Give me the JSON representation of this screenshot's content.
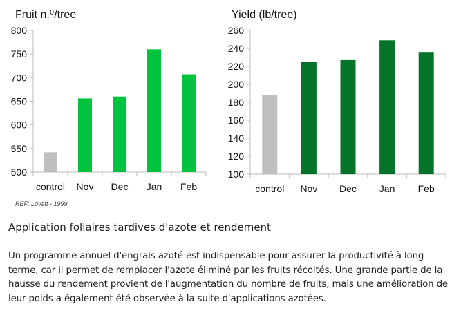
{
  "chart_data": [
    {
      "type": "bar",
      "title": "Fruit n.⁰/tree",
      "categories": [
        "control",
        "Nov",
        "Dec",
        "Jan",
        "Feb"
      ],
      "values": [
        542,
        656,
        660,
        760,
        707
      ],
      "colors": [
        "#bfbfbf",
        "#00c43f",
        "#00c43f",
        "#00c43f",
        "#00c43f"
      ],
      "ylim": [
        500,
        800
      ],
      "yticks": [
        500,
        550,
        600,
        650,
        700,
        750,
        800
      ],
      "grid": false
    },
    {
      "type": "bar",
      "title": "Yield (lb/tree)",
      "categories": [
        "control",
        "Nov",
        "Dec",
        "Jan",
        "Feb"
      ],
      "values": [
        188,
        225,
        227,
        249,
        236
      ],
      "colors": [
        "#bfbfbf",
        "#06732b",
        "#06732b",
        "#06732b",
        "#06732b"
      ],
      "ylim": [
        100,
        260
      ],
      "yticks": [
        100,
        120,
        140,
        160,
        180,
        200,
        220,
        240,
        260
      ],
      "grid": false
    }
  ],
  "reference": "REF: Lovatt - 1999",
  "article": {
    "heading": "Application foliaires tardives d'azote et rendement",
    "paragraph": "Un programme annuel d'engrais azoté est indispensable pour assurer la productivité à long terme, car il permet de remplacer l'azote éliminé par les fruits récoltés. Une grande partie de la hausse du rendement provient de l'augmentation du nombre de fruits, mais une amélioration de leur poids a également été observée à la suite d'applications azotées."
  }
}
